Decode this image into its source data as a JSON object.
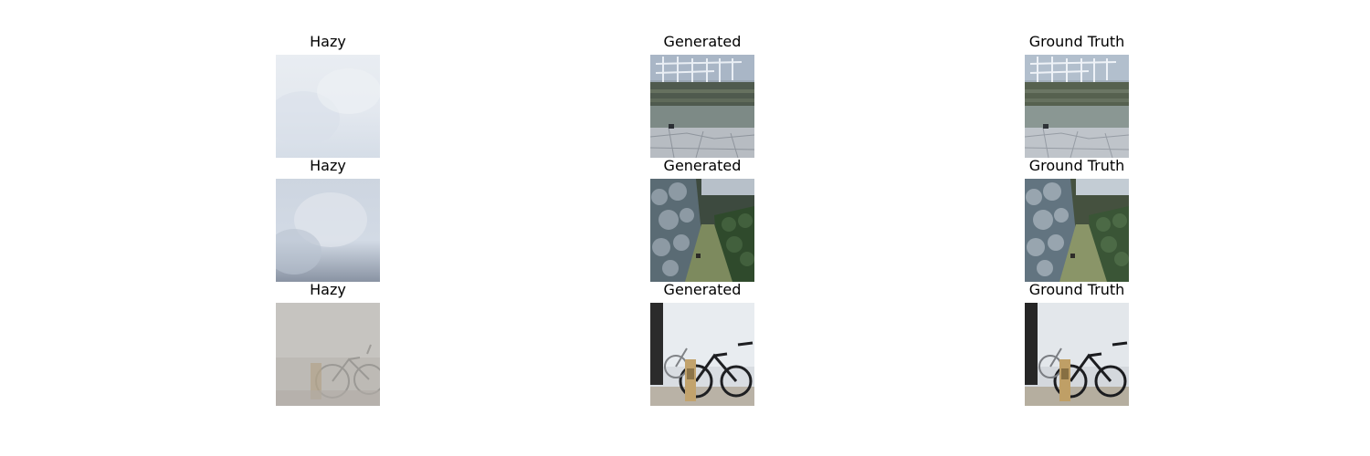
{
  "rows": [
    {
      "hazy_title": "Hazy",
      "generated_title": "Generated",
      "truth_title": "Ground Truth"
    },
    {
      "hazy_title": "Hazy",
      "generated_title": "Generated",
      "truth_title": "Ground Truth"
    },
    {
      "hazy_title": "Hazy",
      "generated_title": "Generated",
      "truth_title": "Ground Truth"
    }
  ]
}
